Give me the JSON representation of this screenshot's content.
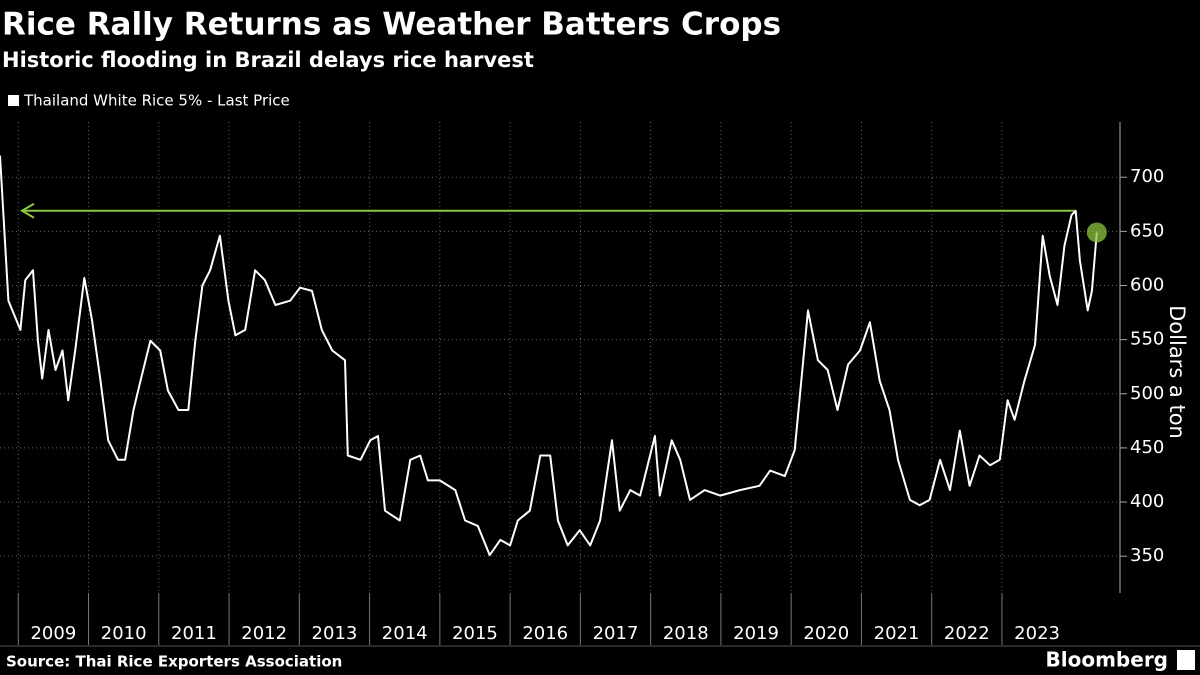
{
  "chart_data": {
    "type": "line",
    "title": "Rice Rally Returns as Weather Batters Crops",
    "subtitle": "Historic flooding in Brazil delays rice harvest",
    "y_axis_label": "Dollars a ton",
    "source": "Source: Thai Rice Exporters Association",
    "brand": "Bloomberg",
    "grid": true,
    "xlim": [
      2008.74,
      2024.68
    ],
    "ylim": [
      316,
      751
    ],
    "xticks": [
      2009,
      2010,
      2011,
      2012,
      2013,
      2014,
      2015,
      2016,
      2017,
      2018,
      2019,
      2020,
      2021,
      2022,
      2023
    ],
    "yticks": [
      350,
      400,
      450,
      500,
      550,
      600,
      650,
      700
    ],
    "reference_line": {
      "value": 669,
      "color": "#8dc63f"
    },
    "series": [
      {
        "name": "Thailand White Rice 5% - Last Price",
        "color": "#ffffff",
        "x": [
          2008.74,
          2008.86,
          2008.96,
          2009.03,
          2009.1,
          2009.21,
          2009.28,
          2009.34,
          2009.43,
          2009.53,
          2009.63,
          2009.71,
          2009.81,
          2009.94,
          2010.05,
          2010.17,
          2010.28,
          2010.42,
          2010.52,
          2010.64,
          2010.74,
          2010.88,
          2011.02,
          2011.13,
          2011.28,
          2011.42,
          2011.52,
          2011.62,
          2011.73,
          2011.87,
          2011.99,
          2012.09,
          2012.23,
          2012.37,
          2012.51,
          2012.66,
          2012.87,
          2013.01,
          2013.18,
          2013.32,
          2013.47,
          2013.65,
          2013.69,
          2013.87,
          2014.01,
          2014.12,
          2014.22,
          2014.43,
          2014.58,
          2014.72,
          2014.83,
          2015.0,
          2015.22,
          2015.36,
          2015.54,
          2015.71,
          2015.86,
          2016.0,
          2016.11,
          2016.28,
          2016.43,
          2016.57,
          2016.68,
          2016.82,
          2016.99,
          2017.14,
          2017.28,
          2017.45,
          2017.56,
          2017.71,
          2017.85,
          2018.06,
          2018.13,
          2018.3,
          2018.42,
          2018.56,
          2018.77,
          2018.99,
          2019.27,
          2019.55,
          2019.7,
          2019.91,
          2020.05,
          2020.24,
          2020.38,
          2020.52,
          2020.66,
          2020.81,
          2020.98,
          2021.12,
          2021.26,
          2021.4,
          2021.52,
          2021.69,
          2021.83,
          2021.97,
          2022.12,
          2022.26,
          2022.4,
          2022.54,
          2022.68,
          2022.83,
          2022.97,
          2023.08,
          2023.18,
          2023.32,
          2023.47,
          2023.58,
          2023.68,
          2023.79,
          2023.89,
          2023.99,
          2024.05,
          2024.11,
          2024.22,
          2024.28,
          2024.35
        ],
        "values": [
          720,
          586,
          570,
          559,
          605,
          614,
          549,
          514,
          559,
          522,
          540,
          494,
          540,
          607,
          568,
          512,
          457,
          439,
          439,
          485,
          512,
          549,
          540,
          503,
          485,
          485,
          549,
          600,
          614,
          646,
          586,
          554,
          559,
          614,
          605,
          582,
          586,
          598,
          595,
          559,
          540,
          531,
          443,
          439,
          457,
          461,
          392,
          383,
          439,
          443,
          420,
          420,
          411,
          383,
          378,
          351,
          365,
          360,
          383,
          392,
          443,
          443,
          383,
          360,
          374,
          360,
          383,
          457,
          392,
          411,
          406,
          461,
          406,
          457,
          439,
          402,
          411,
          406,
          411,
          415,
          429,
          424,
          448,
          577,
          531,
          522,
          485,
          527,
          540,
          566,
          512,
          485,
          439,
          402,
          397,
          402,
          439,
          411,
          466,
          415,
          443,
          434,
          439,
          494,
          476,
          512,
          545,
          646,
          609,
          582,
          637,
          665,
          669,
          623,
          577,
          595,
          649
        ]
      }
    ]
  }
}
